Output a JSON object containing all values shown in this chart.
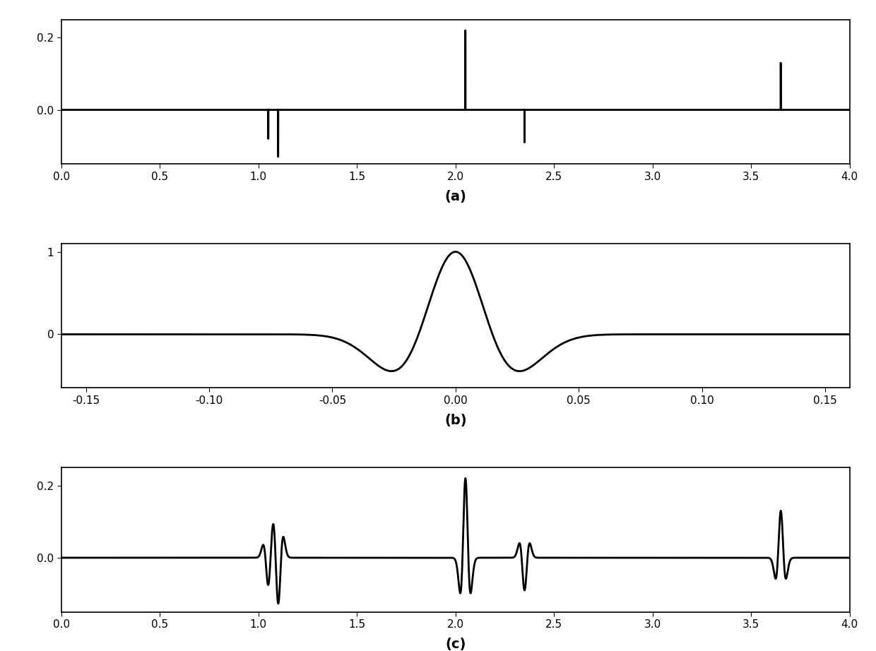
{
  "title_a": "(a)",
  "title_b": "(b)",
  "title_c": "(c)",
  "spike_times": [
    1.05,
    1.1,
    2.05,
    2.35,
    3.65
  ],
  "spike_amplitudes": [
    -0.08,
    -0.13,
    0.22,
    -0.09,
    0.13
  ],
  "wavelet_freq": 15.0,
  "wavelet_range": [
    -0.16,
    0.16
  ],
  "signal_xlim_a": [
    0.0,
    4.0
  ],
  "signal_xlim_c": [
    0.0,
    4.0
  ],
  "signal_ylim_a": [
    -0.15,
    0.25
  ],
  "signal_ylim_c": [
    -0.15,
    0.25
  ],
  "wavelet_ylim": [
    -0.65,
    1.1
  ],
  "line_color": "#000000",
  "line_width": 2.0,
  "bg_color": "#ffffff",
  "sample_rate": 4000,
  "total_time": 4.0,
  "label_fontsize": 14,
  "tick_fontsize": 11
}
